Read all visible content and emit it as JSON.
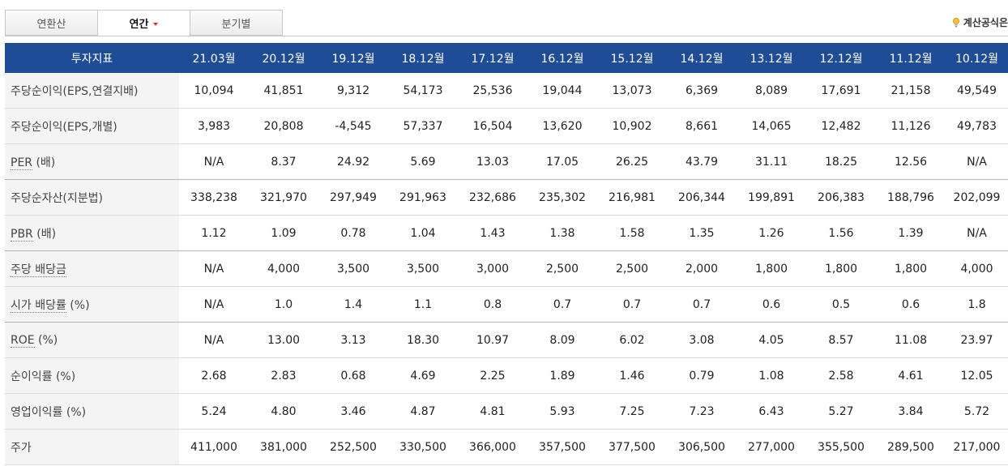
{
  "tabs": [
    {
      "label": "연환산"
    },
    {
      "label": "연간"
    },
    {
      "label": "분기별"
    }
  ],
  "calc_link": {
    "label": "계산공식은"
  },
  "table": {
    "header_label": "투자지표",
    "columns": [
      "21.03월",
      "20.12월",
      "19.12월",
      "18.12월",
      "17.12월",
      "16.12월",
      "15.12월",
      "14.12월",
      "13.12월",
      "12.12월",
      "11.12월",
      "10.12월"
    ],
    "rows": [
      {
        "label": "주당순이익(EPS,연결지배)",
        "label_main": "",
        "label_unit": "",
        "values": [
          "10,094",
          "41,851",
          "9,312",
          "54,173",
          "25,536",
          "19,044",
          "13,073",
          "6,369",
          "8,089",
          "17,691",
          "21,158",
          "49,549"
        ]
      },
      {
        "label": "주당순이익(EPS,개별)",
        "label_main": "",
        "label_unit": "",
        "values": [
          "3,983",
          "20,808",
          "-4,545",
          "57,337",
          "16,504",
          "13,620",
          "10,902",
          "8,661",
          "14,065",
          "12,482",
          "11,126",
          "49,783"
        ]
      },
      {
        "label": "",
        "label_main": "PER",
        "label_unit": " (배)",
        "values": [
          "N/A",
          "8.37",
          "24.92",
          "5.69",
          "13.03",
          "17.05",
          "26.25",
          "43.79",
          "31.11",
          "18.25",
          "12.56",
          "N/A"
        ]
      },
      {
        "label": "주당순자산(지분법)",
        "label_main": "",
        "label_unit": "",
        "values": [
          "338,238",
          "321,970",
          "297,949",
          "291,963",
          "232,686",
          "235,302",
          "216,981",
          "206,344",
          "199,891",
          "206,383",
          "188,796",
          "202,099"
        ]
      },
      {
        "label": "",
        "label_main": "PBR",
        "label_unit": " (배)",
        "values": [
          "1.12",
          "1.09",
          "0.78",
          "1.04",
          "1.43",
          "1.38",
          "1.58",
          "1.35",
          "1.26",
          "1.56",
          "1.39",
          "N/A"
        ]
      },
      {
        "label": "",
        "label_main": "주당 배당금",
        "label_unit": "",
        "values": [
          "N/A",
          "4,000",
          "3,500",
          "3,500",
          "3,000",
          "2,500",
          "2,500",
          "2,000",
          "1,800",
          "1,800",
          "1,800",
          "4,000"
        ]
      },
      {
        "label": "",
        "label_main": "시가 배당률",
        "label_unit": " (%)",
        "values": [
          "N/A",
          "1.0",
          "1.4",
          "1.1",
          "0.8",
          "0.7",
          "0.7",
          "0.7",
          "0.6",
          "0.5",
          "0.6",
          "1.8"
        ]
      },
      {
        "label": "",
        "label_main": "ROE",
        "label_unit": " (%)",
        "values": [
          "N/A",
          "13.00",
          "3.13",
          "18.30",
          "10.97",
          "8.09",
          "6.02",
          "3.08",
          "4.05",
          "8.57",
          "11.08",
          "23.97"
        ]
      },
      {
        "label": "순이익률 (%)",
        "label_main": "",
        "label_unit": "",
        "values": [
          "2.68",
          "2.83",
          "0.68",
          "4.69",
          "2.25",
          "1.89",
          "1.46",
          "0.79",
          "1.08",
          "2.58",
          "4.61",
          "12.05"
        ]
      },
      {
        "label": "영업이익률 (%)",
        "label_main": "",
        "label_unit": "",
        "values": [
          "5.24",
          "4.80",
          "3.46",
          "4.87",
          "4.81",
          "5.93",
          "7.25",
          "7.23",
          "6.43",
          "5.27",
          "3.84",
          "5.72"
        ]
      },
      {
        "label": "주가",
        "label_main": "",
        "label_unit": "",
        "values": [
          "411,000",
          "381,000",
          "252,500",
          "330,500",
          "366,000",
          "357,500",
          "377,500",
          "306,500",
          "277,000",
          "355,500",
          "289,500",
          "217,000"
        ]
      }
    ]
  },
  "colors": {
    "header_bg": "#1f4c97",
    "active_caret": "#e3322b",
    "label_bg": "#f4f4f4"
  }
}
